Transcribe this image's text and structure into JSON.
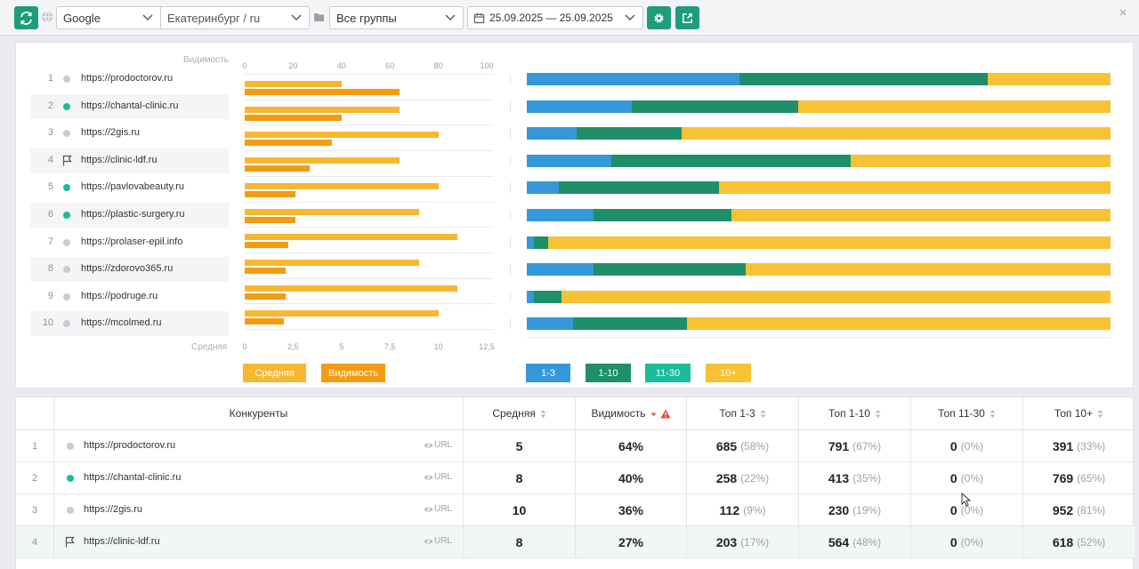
{
  "toolbar": {
    "engine": "Google",
    "region": "Екатеринбург / ru",
    "group": "Все группы",
    "dates": "25.09.2025 — 25.09.2025"
  },
  "chart_data": [
    {
      "type": "bar",
      "title": "",
      "top_axis_label": "Видимость",
      "bottom_axis_label": "Средняя",
      "top_ticks": [
        "0",
        "20",
        "40",
        "60",
        "80",
        "100"
      ],
      "bottom_ticks": [
        "0",
        "2,5",
        "5",
        "7,5",
        "10",
        "12,5"
      ],
      "xlim_top": [
        0,
        100
      ],
      "xlim_bottom": [
        0,
        12.5
      ],
      "categories": [
        "https://prodoctorov.ru",
        "https://chantal-clinic.ru",
        "https://2gis.ru",
        "https://clinic-ldf.ru",
        "https://pavlovabeauty.ru",
        "https://plastic-surgery.ru",
        "https://prolaser-epil.info",
        "https://zdorovo365.ru",
        "https://podruge.ru",
        "https://mcolmed.ru"
      ],
      "markers": [
        "dot-grey",
        "dot-green",
        "dot-grey",
        "flag",
        "dot-green",
        "dot-green",
        "dot-grey",
        "dot-grey",
        "dot-grey",
        "dot-grey"
      ],
      "series": [
        {
          "name": "Средняя",
          "axis": "top",
          "values": [
            5,
            8,
            10,
            8,
            10,
            9,
            11,
            9,
            11,
            10
          ]
        },
        {
          "name": "Видимость",
          "axis": "bottom",
          "values": [
            64,
            40,
            36,
            27,
            21,
            21,
            18,
            17,
            17,
            16
          ]
        }
      ],
      "legend": [
        "Средняя",
        "Видимость"
      ]
    },
    {
      "type": "bar",
      "stacked": true,
      "title": "",
      "categories": [
        "https://prodoctorov.ru",
        "https://chantal-clinic.ru",
        "https://2gis.ru",
        "https://clinic-ldf.ru",
        "https://pavlovabeauty.ru",
        "https://plastic-surgery.ru",
        "https://prolaser-epil.info",
        "https://zdorovo365.ru",
        "https://podruge.ru",
        "https://mcolmed.ru"
      ],
      "series": [
        {
          "name": "1-3",
          "values": [
            36.5,
            18,
            8.5,
            14.5,
            5.5,
            11.5,
            1.2,
            11.5,
            1.2,
            8
          ]
        },
        {
          "name": "1-10",
          "values": [
            42.5,
            28.5,
            18,
            41,
            27.5,
            23.5,
            2.5,
            26,
            4.8,
            19.5
          ]
        },
        {
          "name": "10+",
          "values": [
            21,
            53.5,
            73.5,
            44.5,
            67,
            65,
            96.3,
            62.5,
            94,
            72.5
          ]
        }
      ],
      "legend": [
        "1-3",
        "1-10",
        "11-30",
        "10+"
      ]
    }
  ],
  "legend_colors": {
    "avg": "#f7b731",
    "vis": "#f39c12",
    "t13": "#3498db",
    "t110": "#1e8f69",
    "t1130": "#1abc9c",
    "t10p": "#f7c233"
  },
  "table": {
    "headers": {
      "competitors": "Конкуренты",
      "avg": "Средняя",
      "vis": "Видимость",
      "top13": "Топ 1-3",
      "top110": "Топ 1-10",
      "top1130": "Топ 11-30",
      "top10p": "Топ 10+"
    },
    "url_label": "URL",
    "rows": [
      {
        "num": "1",
        "name": "https://prodoctorov.ru",
        "marker": "dot-grey",
        "avg": "5",
        "vis": "64%",
        "t13": "685",
        "t13p": "(58%)",
        "t110": "791",
        "t110p": "(67%)",
        "t1130": "0",
        "t1130p": "(0%)",
        "t10p": "391",
        "t10pp": "(33%)"
      },
      {
        "num": "2",
        "name": "https://chantal-clinic.ru",
        "marker": "dot-green",
        "avg": "8",
        "vis": "40%",
        "t13": "258",
        "t13p": "(22%)",
        "t110": "413",
        "t110p": "(35%)",
        "t1130": "0",
        "t1130p": "(0%)",
        "t10p": "769",
        "t10pp": "(65%)"
      },
      {
        "num": "3",
        "name": "https://2gis.ru",
        "marker": "dot-grey",
        "avg": "10",
        "vis": "36%",
        "t13": "112",
        "t13p": "(9%)",
        "t110": "230",
        "t110p": "(19%)",
        "t1130": "0",
        "t1130p": "(0%)",
        "t10p": "952",
        "t10pp": "(81%)"
      },
      {
        "num": "4",
        "name": "https://clinic-ldf.ru",
        "marker": "flag",
        "avg": "8",
        "vis": "27%",
        "t13": "203",
        "t13p": "(17%)",
        "t110": "564",
        "t110p": "(48%)",
        "t1130": "0",
        "t1130p": "(0%)",
        "t10p": "618",
        "t10pp": "(52%)"
      }
    ]
  }
}
